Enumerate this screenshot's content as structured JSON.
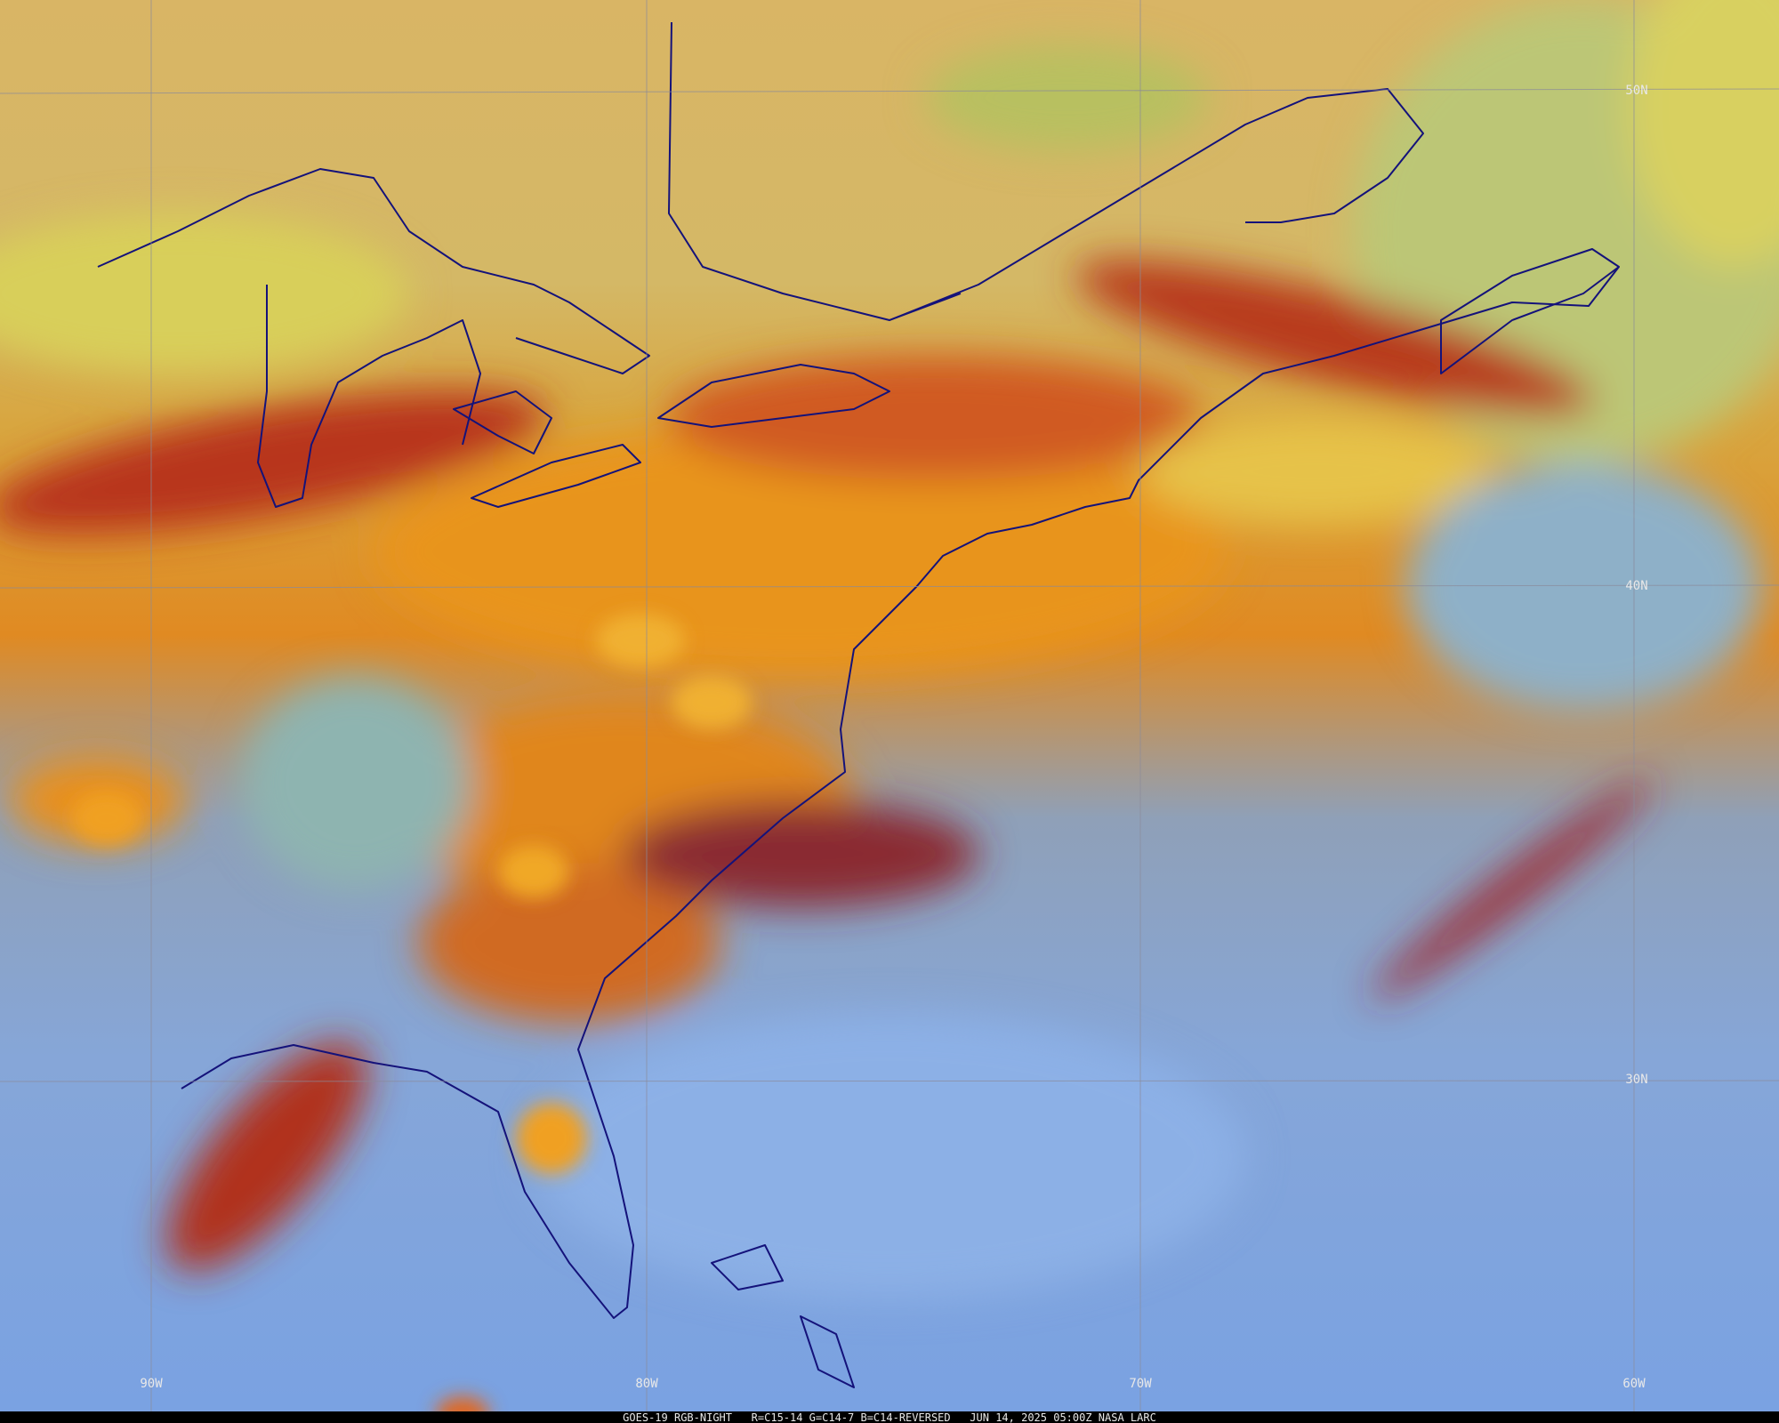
{
  "grid_labels": {
    "latitudes": [
      "50N",
      "40N",
      "30N"
    ],
    "longitudes": [
      "90W",
      "80W",
      "70W",
      "60W"
    ]
  },
  "footer": "GOES-19 RGB-NIGHT   R=C15-14 G=C14-7 B=C14-REVERSED   JUN 14, 2025 05:00Z NASA LARC"
}
